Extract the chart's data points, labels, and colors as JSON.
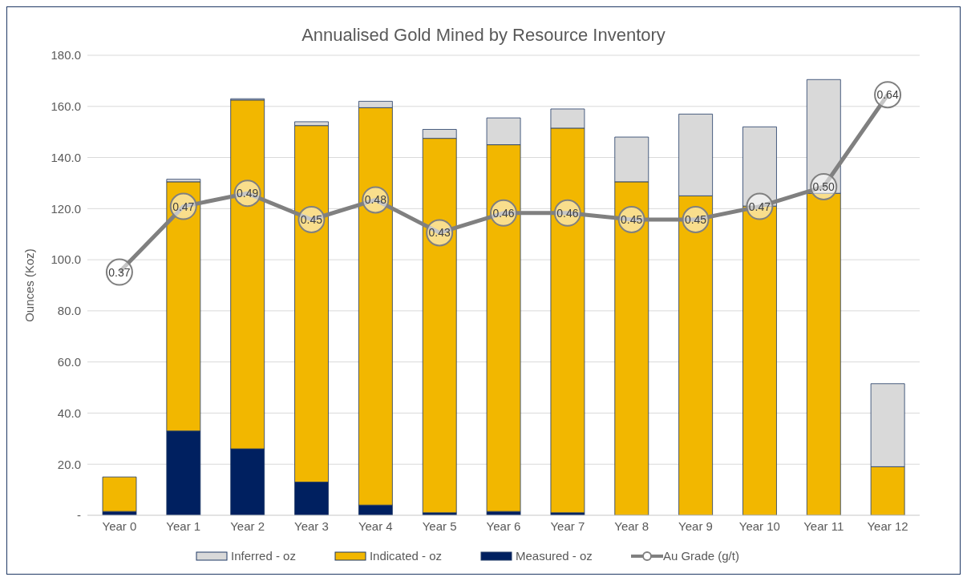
{
  "chart_data": {
    "type": "bar",
    "title": "Annualised Gold Mined by Resource Inventory",
    "ylabel": "Ounces (Koz)",
    "categories": [
      "Year 0",
      "Year 1",
      "Year 2",
      "Year 3",
      "Year 4",
      "Year 5",
      "Year 6",
      "Year 7",
      "Year 8",
      "Year 9",
      "Year 10",
      "Year 11",
      "Year 12"
    ],
    "stacked": true,
    "legend": "bottom",
    "grid": "y",
    "ylim": [
      0,
      180
    ],
    "yticks": [
      {
        "value": 0,
        "label": "-"
      },
      {
        "value": 20,
        "label": "20.0"
      },
      {
        "value": 40,
        "label": "40.0"
      },
      {
        "value": 60,
        "label": "60.0"
      },
      {
        "value": 80,
        "label": "80.0"
      },
      {
        "value": 100,
        "label": "100.0"
      },
      {
        "value": 120,
        "label": "120.0"
      },
      {
        "value": 140,
        "label": "140.0"
      },
      {
        "value": 160,
        "label": "160.0"
      },
      {
        "value": 180,
        "label": "180.0"
      }
    ],
    "y2lim": [
      0,
      0.7
    ],
    "series": [
      {
        "name": "Measured - oz",
        "color": "#002060",
        "values": [
          1.5,
          33,
          26,
          13,
          4,
          1,
          1.5,
          1,
          0,
          0,
          0,
          0,
          0
        ]
      },
      {
        "name": "Indicated - oz",
        "color": "#f2b700",
        "values": [
          13.5,
          97.5,
          136.5,
          139.5,
          155.5,
          146.5,
          143.5,
          150.5,
          130.5,
          125,
          121,
          126,
          19
        ]
      },
      {
        "name": "Inferred - oz",
        "color": "#d9d9d9",
        "values": [
          0,
          1,
          0.5,
          1.5,
          2.5,
          3.5,
          10.5,
          7.5,
          17.5,
          32,
          31,
          44.5,
          32.5
        ]
      },
      {
        "name": "Au Grade  (g/t)",
        "type": "line",
        "axis": "y2",
        "color": "#808080",
        "marker": "circle",
        "line_style": "solid",
        "values": [
          0.37,
          0.47,
          0.49,
          0.45,
          0.48,
          0.43,
          0.46,
          0.46,
          0.45,
          0.45,
          0.47,
          0.5,
          0.64
        ],
        "value_labels": [
          "0.37",
          "0.47",
          "0.49",
          "0.45",
          "0.48",
          "0.43",
          "0.46",
          "0.46",
          "0.45",
          "0.45",
          "0.47",
          "0.50",
          "0.64"
        ]
      }
    ]
  }
}
